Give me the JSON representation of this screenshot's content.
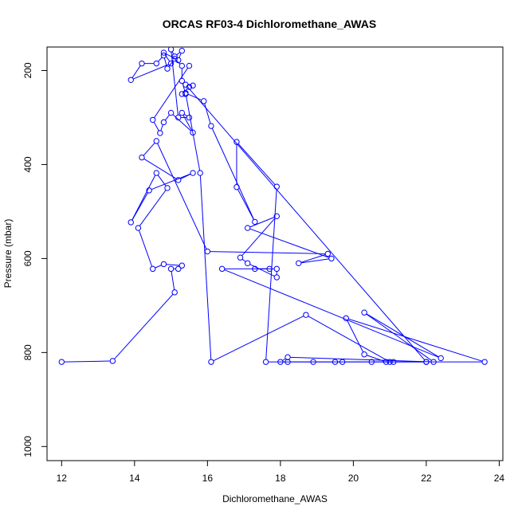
{
  "chart_data": {
    "type": "scatter",
    "title": "ORCAS RF03-4 Dichloromethane_AWAS",
    "xlabel": "Dichloromethane_AWAS",
    "ylabel": "Pressure (mbar)",
    "xlim": [
      11.6,
      24.1
    ],
    "ylim": [
      1030,
      150
    ],
    "y_reversed": true,
    "x_ticks": [
      12,
      14,
      16,
      18,
      20,
      22,
      24
    ],
    "y_ticks": [
      200,
      400,
      600,
      800,
      1000
    ],
    "grid": false,
    "legend": "none",
    "series": [
      {
        "color": "#0000ff",
        "marker": "open-circle",
        "line": true,
        "points": [
          [
            12.0,
            820
          ],
          [
            13.4,
            818
          ],
          [
            15.1,
            672
          ],
          [
            15.0,
            622
          ],
          [
            15.2,
            622
          ],
          [
            15.3,
            615
          ],
          [
            14.8,
            612
          ],
          [
            14.5,
            622
          ],
          [
            14.1,
            535
          ],
          [
            14.9,
            450
          ],
          [
            14.6,
            418
          ],
          [
            13.9,
            523
          ],
          [
            14.4,
            455
          ],
          [
            15.6,
            418
          ],
          [
            15.2,
            433
          ],
          [
            14.2,
            385
          ],
          [
            14.6,
            350
          ],
          [
            16.0,
            585
          ],
          [
            19.3,
            590
          ],
          [
            18.5,
            610
          ],
          [
            19.4,
            600
          ],
          [
            17.1,
            535
          ],
          [
            17.9,
            510
          ],
          [
            16.9,
            598
          ],
          [
            17.1,
            610
          ],
          [
            17.9,
            640
          ],
          [
            17.9,
            622
          ],
          [
            17.3,
            622
          ],
          [
            17.7,
            622
          ],
          [
            16.4,
            622
          ],
          [
            22.4,
            812
          ],
          [
            20.3,
            715
          ],
          [
            22.2,
            820
          ],
          [
            18.2,
            810
          ],
          [
            18.0,
            820
          ],
          [
            18.9,
            820
          ],
          [
            19.5,
            820
          ],
          [
            20.5,
            820
          ],
          [
            21.0,
            820
          ],
          [
            18.7,
            720
          ],
          [
            16.1,
            820
          ],
          [
            15.8,
            418
          ],
          [
            15.4,
            248
          ],
          [
            15.9,
            265
          ],
          [
            16.1,
            318
          ],
          [
            17.3,
            522
          ],
          [
            16.8,
            448
          ],
          [
            16.8,
            352
          ],
          [
            17.9,
            447
          ],
          [
            17.6,
            820
          ],
          [
            18.2,
            820
          ],
          [
            19.7,
            820
          ],
          [
            21.1,
            820
          ],
          [
            22.0,
            820
          ],
          [
            23.6,
            820
          ],
          [
            19.8,
            727
          ],
          [
            20.3,
            804
          ],
          [
            20.9,
            820
          ],
          [
            22.0,
            820
          ],
          [
            15.4,
            230
          ],
          [
            15.6,
            232
          ],
          [
            15.5,
            235
          ],
          [
            15.3,
            250
          ],
          [
            15.4,
            250
          ],
          [
            15.3,
            222
          ],
          [
            15.3,
            190
          ],
          [
            15.1,
            175
          ],
          [
            14.9,
            196
          ],
          [
            14.8,
            168
          ],
          [
            14.6,
            185
          ],
          [
            14.2,
            185
          ],
          [
            13.9,
            220
          ],
          [
            15.0,
            185
          ],
          [
            14.8,
            162
          ],
          [
            15.2,
            178
          ],
          [
            15.3,
            158
          ],
          [
            15.1,
            170
          ],
          [
            15.0,
            155
          ],
          [
            15.2,
            300
          ],
          [
            15.5,
            300
          ],
          [
            15.3,
            290
          ],
          [
            15.6,
            332
          ],
          [
            15.0,
            290
          ],
          [
            14.8,
            310
          ],
          [
            14.7,
            333
          ],
          [
            14.5,
            305
          ],
          [
            15.5,
            190
          ]
        ]
      }
    ]
  }
}
